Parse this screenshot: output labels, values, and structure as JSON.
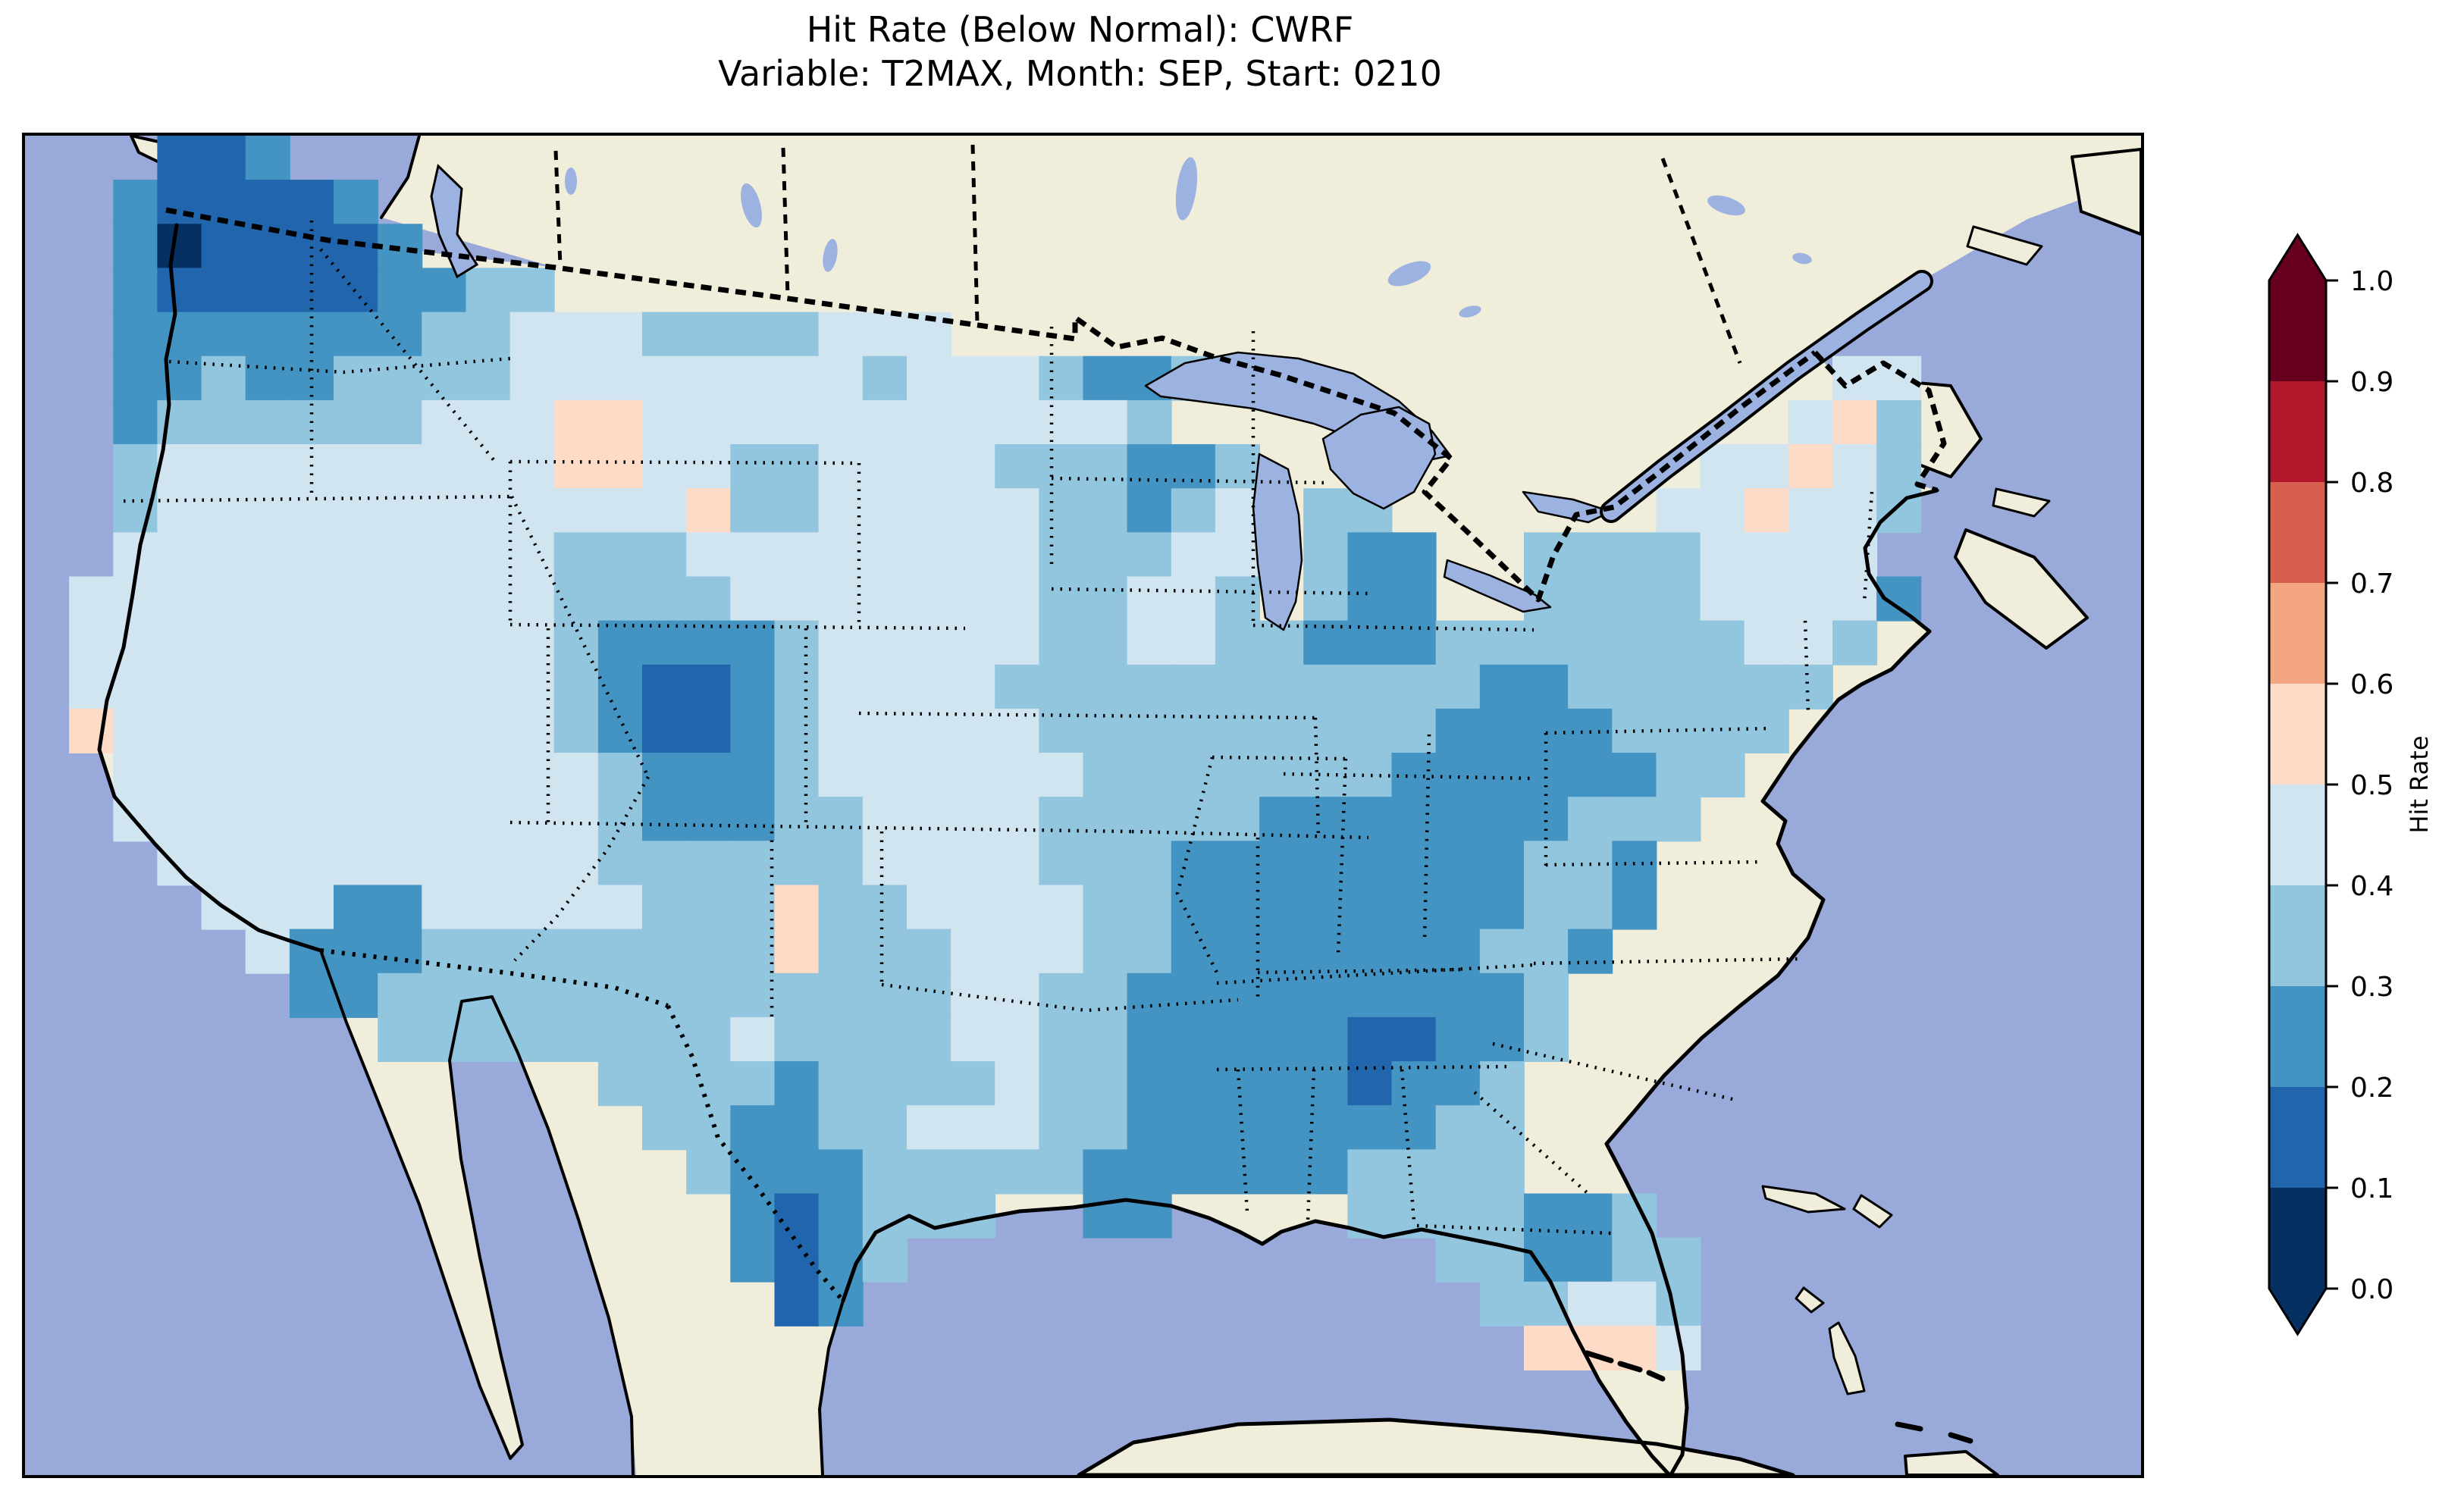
{
  "title": {
    "line1": "Hit Rate (Below Normal): CWRF",
    "line2": "Variable: T2MAX, Month: SEP, Start: 0210"
  },
  "colorbar": {
    "label": "Hit Rate",
    "ticks": [
      "1.0",
      "0.9",
      "0.8",
      "0.7",
      "0.6",
      "0.5",
      "0.4",
      "0.3",
      "0.2",
      "0.1",
      "0.0"
    ],
    "segment_colors_top_to_bottom": [
      "#67001f",
      "#b2182b",
      "#d6604d",
      "#f4a582",
      "#fddbc7",
      "#d1e5f0",
      "#92c5de",
      "#4393c3",
      "#2166ac",
      "#053061"
    ],
    "extend_arrows": "both"
  },
  "map": {
    "colors": {
      "ocean": "#99aada",
      "land": "#f0eedb",
      "lake": "#9cb2e0",
      "coastline": "#000000"
    }
  },
  "chart_data": {
    "type": "heatmap",
    "title": "Hit Rate (Below Normal): CWRF",
    "subtitle": "Variable: T2MAX, Month: SEP, Start: 0210",
    "variable": "T2MAX",
    "month": "SEP",
    "start": "0210",
    "model": "CWRF",
    "metric": "Hit Rate (Below Normal)",
    "colorbar_label": "Hit Rate",
    "colorbar_range": [
      0.0,
      1.0
    ],
    "colorbar_tick_step": 0.1,
    "colormap": "RdBu_r, 10 discrete bins, extend both",
    "bin_colors_low_to_high": [
      "#053061",
      "#2166ac",
      "#4393c3",
      "#92c5de",
      "#d1e5f0",
      "#fddbc7",
      "#f4a582",
      "#d6604d",
      "#b2182b",
      "#67001f"
    ],
    "projection": "Lambert-conformal style CONUS map with ocean/land basemap",
    "value_encoding": "Each grid row string: '.' = no data (outside US mask); digit d = hit-rate bin [d/10,(d+1)/10)",
    "grid_rows": 30,
    "grid_cols": 48,
    "grid": [
      "...112..........................................",
      "..211112........................................",
      "..2011112.......................................",
      "..2111112233....................................",
      "..2222222334443333444...........................",
      "..22322333344444444344432233.............44.....",
      "..233333344455444444444443..............453.....",
      "..34444444445544334444333223..........44543....",
      "..34444444444445334444433234.33......445443.....",
      "..44444444443334444444433344.322..33334444......",
      ".444444444443333444444433443.322..333344442.....",
      ".44444444444322223444443344332223333333443......",
      ".4444444444432112344443333333333322333333.......",
      ".544444444443211234444433333333322223333........",
      "..4444444444432223444444333333322222233.........",
      "..444444444443222334444333332222222333..........",
      "...4444444444333333444433322222222332...........",
      "....444224444433353344443322222222332...........",
      ".....4222333333335333444332222222332............",
      "......22333333333333344332222222223.............",
      "........333333334333344332222211223.............",
      ".............333323333433222221223..............",
      "..............33223344433222222233..............",
      "...............3222333332222223333..............",
      "................212333..22....3333223...........",
      "................2123............332233..........",
      ".................12..............33443..........",
      "..................................5554..........",
      "................................................",
      "................................................"
    ],
    "regional_summary_hit_rate": {
      "Washington (dark low)": 0.15,
      "Puget Sound cell": 0.05,
      "Oregon": 0.25,
      "California": 0.45,
      "California coast spots": 0.55,
      "Great Basin NV-UT": 0.45,
      "SW Montana pink blob": 0.55,
      "Northern Plains": 0.45,
      "Colorado dark blob": 0.25,
      "Colorado core": 0.15,
      "New Mexico pink cells": 0.55,
      "Minnesota / Wisconsin": 0.3,
      "Midwest IL-IN-OH": 0.35,
      "Appalachians KY-WV-TN": 0.25,
      "Southeast AL-GA": 0.25,
      "AL-GA dark spot": 0.15,
      "South Texas border band": 0.15,
      "Texas interior": 0.4,
      "Louisiana-Gulf coast": 0.25,
      "Florida peninsula": 0.35,
      "Florida ocean pink dots": 0.55,
      "Northeast / New England": 0.45,
      "New England pink cells": 0.55,
      "Cape Cod dark cell": 0.25
    }
  }
}
